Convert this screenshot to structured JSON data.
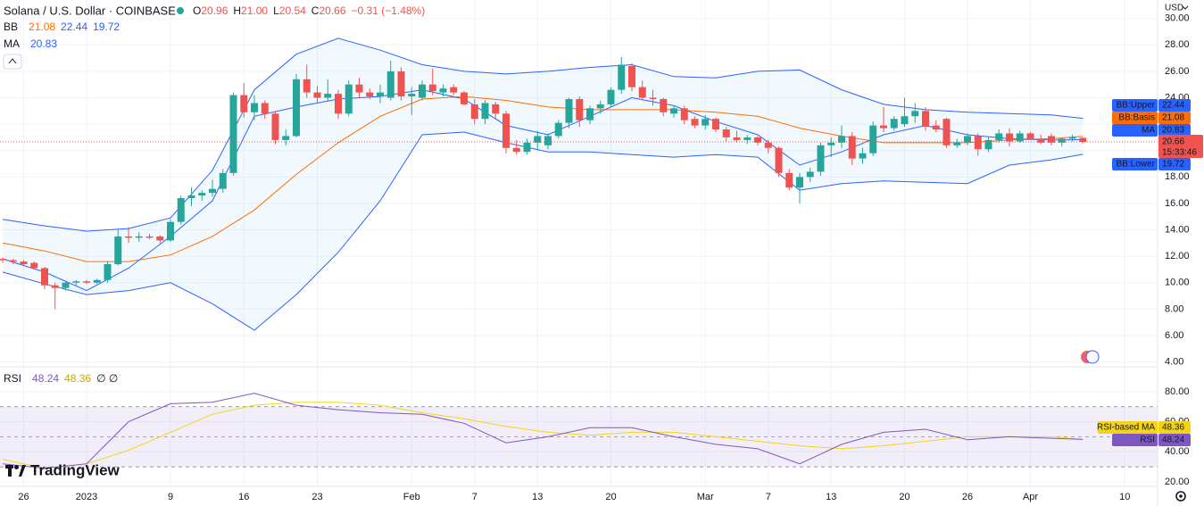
{
  "chart_data": {
    "type": "candlestick",
    "title": "Solana / U.S. Dollar · COINBASE",
    "ohlc_header": [
      {
        "key": "O",
        "value": "20.96"
      },
      {
        "key": "H",
        "value": "21.00"
      },
      {
        "key": "L",
        "value": "20.54"
      },
      {
        "key": "C",
        "value": "20.66"
      }
    ],
    "change": "−0.31 (−1.48%)",
    "currency": "USD",
    "bb_label": "BB",
    "ma_label": "MA",
    "countdown": "15:33:46",
    "watermark": "TradingView",
    "up_color": "#26a69a",
    "down_color": "#ef5350",
    "grid": true,
    "categories": [
      "Dec 24",
      "Dec 25",
      "Dec 26",
      "Dec 27",
      "Dec 28",
      "Dec 29",
      "Dec 30",
      "Dec 31",
      "Jan 1",
      "Jan 2",
      "Jan 3",
      "Jan 4",
      "Jan 5",
      "Jan 6",
      "Jan 7",
      "Jan 8",
      "Jan 9",
      "Jan 10",
      "Jan 11",
      "Jan 12",
      "Jan 13",
      "Jan 14",
      "Jan 15",
      "Jan 16",
      "Jan 17",
      "Jan 18",
      "Jan 19",
      "Jan 20",
      "Jan 21",
      "Jan 22",
      "Jan 23",
      "Jan 24",
      "Jan 25",
      "Jan 26",
      "Jan 27",
      "Jan 28",
      "Jan 29",
      "Jan 30",
      "Jan 31",
      "Feb 1",
      "Feb 2",
      "Feb 3",
      "Feb 4",
      "Feb 5",
      "Feb 6",
      "Feb 7",
      "Feb 8",
      "Feb 9",
      "Feb 10",
      "Feb 11",
      "Feb 12",
      "Feb 13",
      "Feb 14",
      "Feb 15",
      "Feb 16",
      "Feb 17",
      "Feb 18",
      "Feb 19",
      "Feb 20",
      "Feb 21",
      "Feb 22",
      "Feb 23",
      "Feb 24",
      "Feb 25",
      "Feb 26",
      "Feb 27",
      "Feb 28",
      "Mar 1",
      "Mar 2",
      "Mar 3",
      "Mar 4",
      "Mar 5",
      "Mar 6",
      "Mar 7",
      "Mar 8",
      "Mar 9",
      "Mar 10",
      "Mar 11",
      "Mar 12",
      "Mar 13",
      "Mar 14",
      "Mar 15",
      "Mar 16",
      "Mar 17",
      "Mar 18",
      "Mar 19",
      "Mar 20",
      "Mar 21",
      "Mar 22",
      "Mar 23",
      "Mar 24",
      "Mar 25",
      "Mar 26",
      "Mar 27",
      "Mar 28",
      "Mar 29",
      "Mar 30",
      "Mar 31",
      "Apr 1",
      "Apr 2",
      "Apr 3",
      "Apr 4",
      "Apr 5",
      "Apr 6",
      "Apr 7",
      "Apr 8",
      "Apr 9",
      "Apr 10",
      "Apr 11",
      "Apr 12"
    ],
    "ohlc": [
      [
        11.8,
        11.9,
        11.5,
        11.7
      ],
      [
        11.7,
        11.8,
        11.4,
        11.6
      ],
      [
        11.6,
        11.7,
        11.3,
        11.4
      ],
      [
        11.5,
        11.6,
        11.0,
        11.1
      ],
      [
        11.1,
        11.2,
        9.5,
        9.8
      ],
      [
        9.8,
        10.0,
        8.0,
        9.6
      ],
      [
        9.6,
        10.1,
        9.4,
        10.0
      ],
      [
        10.0,
        10.2,
        9.8,
        10.1
      ],
      [
        10.1,
        10.2,
        9.9,
        10.0
      ],
      [
        10.0,
        10.3,
        9.9,
        10.2
      ],
      [
        10.2,
        11.6,
        10.0,
        11.4
      ],
      [
        11.4,
        14.0,
        11.3,
        13.5
      ],
      [
        13.5,
        14.2,
        13.0,
        13.4
      ],
      [
        13.4,
        13.8,
        13.1,
        13.5
      ],
      [
        13.5,
        13.7,
        13.3,
        13.4
      ],
      [
        13.5,
        13.6,
        13.0,
        13.2
      ],
      [
        13.2,
        14.8,
        13.1,
        14.6
      ],
      [
        14.6,
        16.6,
        14.4,
        16.4
      ],
      [
        16.4,
        17.2,
        15.8,
        16.6
      ],
      [
        16.6,
        17.0,
        16.2,
        16.8
      ],
      [
        16.8,
        17.8,
        16.5,
        17.1
      ],
      [
        17.1,
        18.6,
        16.8,
        18.3
      ],
      [
        18.3,
        24.4,
        18.1,
        24.2
      ],
      [
        24.2,
        25.1,
        22.5,
        22.9
      ],
      [
        22.9,
        24.2,
        22.3,
        23.6
      ],
      [
        23.6,
        23.8,
        22.4,
        22.8
      ],
      [
        22.8,
        23.0,
        20.5,
        20.8
      ],
      [
        20.8,
        21.6,
        20.4,
        21.1
      ],
      [
        21.1,
        25.8,
        21.0,
        25.4
      ],
      [
        25.4,
        26.5,
        24.0,
        24.4
      ],
      [
        24.4,
        24.9,
        23.6,
        24.0
      ],
      [
        24.0,
        25.4,
        23.7,
        24.3
      ],
      [
        24.3,
        24.6,
        22.4,
        22.8
      ],
      [
        22.8,
        25.3,
        22.6,
        25.0
      ],
      [
        25.0,
        25.5,
        24.0,
        24.4
      ],
      [
        24.4,
        24.7,
        23.9,
        24.1
      ],
      [
        24.1,
        25.0,
        23.6,
        24.4
      ],
      [
        24.0,
        26.8,
        23.8,
        26.0
      ],
      [
        26.0,
        26.3,
        23.8,
        24.1
      ],
      [
        24.1,
        24.8,
        22.7,
        24.3
      ],
      [
        24.0,
        25.3,
        23.8,
        25.0
      ],
      [
        25.0,
        26.2,
        24.2,
        24.5
      ],
      [
        24.4,
        25.0,
        24.1,
        24.7
      ],
      [
        24.8,
        25.0,
        24.2,
        24.4
      ],
      [
        24.4,
        24.5,
        23.4,
        23.5
      ],
      [
        23.5,
        23.9,
        22.0,
        22.4
      ],
      [
        22.4,
        23.8,
        22.0,
        23.6
      ],
      [
        23.5,
        23.7,
        22.4,
        22.8
      ],
      [
        22.8,
        23.0,
        19.8,
        20.2
      ],
      [
        20.2,
        20.8,
        19.7,
        19.9
      ],
      [
        19.9,
        20.9,
        19.7,
        20.6
      ],
      [
        20.6,
        21.5,
        20.0,
        21.1
      ],
      [
        20.4,
        21.3,
        20.1,
        21.1
      ],
      [
        21.1,
        22.3,
        20.9,
        22.1
      ],
      [
        22.1,
        24.0,
        21.7,
        23.9
      ],
      [
        23.9,
        24.1,
        21.8,
        22.3
      ],
      [
        22.3,
        23.4,
        22.0,
        23.2
      ],
      [
        23.2,
        23.8,
        22.8,
        23.5
      ],
      [
        23.5,
        24.8,
        23.3,
        24.6
      ],
      [
        24.6,
        27.1,
        24.3,
        26.5
      ],
      [
        26.4,
        26.6,
        24.5,
        24.8
      ],
      [
        24.8,
        25.3,
        23.8,
        24.0
      ],
      [
        24.0,
        24.6,
        23.4,
        23.9
      ],
      [
        23.9,
        24.0,
        22.6,
        22.9
      ],
      [
        22.8,
        23.4,
        22.5,
        23.2
      ],
      [
        23.2,
        23.4,
        22.0,
        22.3
      ],
      [
        22.4,
        22.6,
        21.7,
        21.9
      ],
      [
        21.9,
        22.7,
        21.6,
        22.4
      ],
      [
        22.4,
        22.5,
        21.4,
        21.6
      ],
      [
        21.6,
        21.8,
        20.7,
        21.0
      ],
      [
        21.0,
        21.5,
        20.6,
        20.8
      ],
      [
        20.8,
        21.2,
        20.5,
        21.0
      ],
      [
        21.0,
        21.1,
        20.4,
        20.6
      ],
      [
        20.6,
        20.8,
        19.8,
        20.2
      ],
      [
        20.2,
        20.3,
        18.0,
        18.3
      ],
      [
        18.3,
        18.6,
        17.0,
        17.2
      ],
      [
        17.2,
        18.3,
        16.0,
        18.0
      ],
      [
        18.0,
        18.7,
        17.6,
        18.4
      ],
      [
        18.4,
        20.6,
        18.1,
        20.4
      ],
      [
        20.4,
        21.0,
        19.5,
        20.6
      ],
      [
        20.6,
        21.9,
        20.2,
        21.1
      ],
      [
        21.1,
        21.4,
        18.9,
        19.4
      ],
      [
        19.4,
        20.2,
        19.0,
        19.8
      ],
      [
        19.8,
        22.2,
        19.6,
        21.9
      ],
      [
        21.9,
        23.3,
        21.4,
        21.7
      ],
      [
        21.7,
        22.6,
        21.5,
        22.4
      ],
      [
        22.0,
        24.0,
        21.8,
        22.6
      ],
      [
        22.6,
        23.6,
        22.1,
        23.0
      ],
      [
        23.0,
        23.3,
        21.5,
        21.8
      ],
      [
        21.9,
        22.3,
        21.4,
        21.6
      ],
      [
        22.4,
        22.5,
        20.2,
        20.4
      ],
      [
        20.4,
        20.9,
        20.2,
        20.6
      ],
      [
        20.6,
        21.3,
        20.4,
        21.1
      ],
      [
        21.1,
        21.3,
        19.6,
        20.1
      ],
      [
        20.1,
        21.0,
        19.9,
        20.8
      ],
      [
        20.8,
        21.6,
        20.6,
        21.3
      ],
      [
        21.3,
        21.7,
        20.3,
        20.7
      ],
      [
        20.7,
        21.5,
        20.6,
        21.3
      ],
      [
        21.3,
        21.4,
        20.8,
        20.9
      ],
      [
        20.9,
        21.2,
        20.5,
        20.6
      ],
      [
        21.1,
        21.3,
        20.4,
        20.6
      ],
      [
        20.6,
        21.0,
        20.3,
        20.9
      ],
      [
        20.9,
        21.2,
        20.7,
        21.0
      ],
      [
        20.96,
        21.0,
        20.54,
        20.66
      ],
      null,
      null,
      null,
      null,
      null,
      null
    ],
    "xticks": [
      {
        "value": "Dec 26",
        "label": "26"
      },
      {
        "value": "Jan 1",
        "label": "2023"
      },
      {
        "value": "Jan 9",
        "label": "9"
      },
      {
        "value": "Jan 16",
        "label": "16"
      },
      {
        "value": "Jan 23",
        "label": "23"
      },
      {
        "value": "Feb 1",
        "label": "Feb"
      },
      {
        "value": "Feb 7",
        "label": "7"
      },
      {
        "value": "Feb 13",
        "label": "13"
      },
      {
        "value": "Feb 20",
        "label": "20"
      },
      {
        "value": "Mar 1",
        "label": "Mar"
      },
      {
        "value": "Mar 7",
        "label": "7"
      },
      {
        "value": "Mar 13",
        "label": "13"
      },
      {
        "value": "Mar 20",
        "label": "20"
      },
      {
        "value": "Mar 26",
        "label": "26"
      },
      {
        "value": "Apr 1",
        "label": "Apr"
      },
      {
        "value": "Apr 10",
        "label": "10"
      }
    ],
    "ylim": [
      3.7,
      31.4
    ],
    "yticks": [
      {
        "value": 4,
        "label": "4.00"
      },
      {
        "value": 6,
        "label": "6.00"
      },
      {
        "value": 8,
        "label": "8.00"
      },
      {
        "value": 10,
        "label": "10.00"
      },
      {
        "value": 12,
        "label": "12.00"
      },
      {
        "value": 14,
        "label": "14.00"
      },
      {
        "value": 16,
        "label": "16.00"
      },
      {
        "value": 18,
        "label": "18.00"
      },
      {
        "value": 20,
        "label": "20.00"
      },
      {
        "value": 22,
        "label": "22.00"
      },
      {
        "value": 24,
        "label": "24.00"
      },
      {
        "value": 26,
        "label": "26.00"
      },
      {
        "value": 28,
        "label": "28.00"
      },
      {
        "value": 30,
        "label": "30.00"
      }
    ],
    "overlays": {
      "x": [
        "Dec 24",
        "Dec 28",
        "Jan 1",
        "Jan 5",
        "Jan 9",
        "Jan 13",
        "Jan 17",
        "Jan 21",
        "Jan 25",
        "Jan 29",
        "Feb 2",
        "Feb 6",
        "Feb 10",
        "Feb 14",
        "Feb 18",
        "Feb 22",
        "Feb 26",
        "Mar 2",
        "Mar 6",
        "Mar 10",
        "Mar 14",
        "Mar 18",
        "Mar 22",
        "Mar 26",
        "Mar 30",
        "Apr 3",
        "Apr 6"
      ],
      "band_fill": "rgba(33,150,243,0.06)",
      "series": [
        {
          "name": "BB:Upper",
          "color": "#2962ff",
          "values": [
            14.8,
            14.3,
            13.9,
            14.1,
            14.9,
            18.5,
            24.6,
            27.3,
            28.5,
            27.6,
            26.5,
            26.0,
            25.8,
            26.0,
            26.3,
            26.5,
            25.6,
            25.5,
            26.0,
            26.1,
            24.6,
            23.5,
            23.1,
            22.9,
            22.8,
            22.7,
            22.44
          ]
        },
        {
          "name": "BB:Basis",
          "color": "#ff6d00",
          "values": [
            13.0,
            12.4,
            11.6,
            11.6,
            12.1,
            13.5,
            15.5,
            18.2,
            20.6,
            22.6,
            23.9,
            24.1,
            23.8,
            23.3,
            23.1,
            23.1,
            23.1,
            22.9,
            22.6,
            21.7,
            21.1,
            20.6,
            20.6,
            20.6,
            20.8,
            20.9,
            21.08
          ]
        },
        {
          "name": "BB:Lower",
          "color": "#2962ff",
          "values": [
            10.8,
            9.9,
            9.1,
            9.4,
            10.0,
            8.4,
            6.4,
            9.1,
            12.3,
            16.2,
            21.2,
            21.4,
            20.6,
            19.9,
            19.9,
            19.7,
            19.5,
            19.7,
            19.5,
            17.0,
            17.5,
            17.7,
            17.6,
            17.5,
            18.9,
            19.3,
            19.72
          ]
        },
        {
          "name": "MA",
          "color": "#2962ff",
          "values": [
            11.8,
            10.8,
            9.4,
            11.1,
            13.5,
            16.2,
            22.6,
            23.3,
            23.9,
            24.1,
            24.6,
            23.9,
            21.9,
            21.2,
            22.6,
            24.0,
            23.4,
            22.2,
            21.2,
            18.9,
            19.9,
            21.2,
            21.9,
            21.2,
            20.9,
            20.8,
            20.83
          ]
        }
      ]
    },
    "rsi": {
      "title": "RSI",
      "extra": "∅ ∅",
      "ylim": [
        17,
        96.6
      ],
      "yticks": [
        {
          "value": 20,
          "label": "20.00"
        },
        {
          "value": 40,
          "label": "40.00"
        },
        {
          "value": 60,
          "label": "60.00"
        },
        {
          "value": 80,
          "label": "80.00"
        }
      ],
      "levels": [
        70,
        50,
        30
      ],
      "band_color": "rgba(126,87,194,0.1)",
      "x": [
        "Dec 24",
        "Dec 28",
        "Jan 1",
        "Jan 5",
        "Jan 9",
        "Jan 13",
        "Jan 17",
        "Jan 21",
        "Jan 25",
        "Jan 29",
        "Feb 2",
        "Feb 6",
        "Feb 10",
        "Feb 14",
        "Feb 18",
        "Feb 22",
        "Feb 26",
        "Mar 2",
        "Mar 6",
        "Mar 10",
        "Mar 14",
        "Mar 18",
        "Mar 22",
        "Mar 26",
        "Mar 30",
        "Apr 3",
        "Apr 6"
      ],
      "series": [
        {
          "name": "RSI",
          "color": "#7e57c2",
          "values": [
            32,
            29,
            32,
            60,
            72,
            73,
            79,
            71,
            68,
            66,
            65,
            59,
            46,
            50,
            56,
            56,
            50,
            45,
            42,
            32,
            45,
            53,
            55,
            48,
            50,
            49,
            48.24
          ]
        },
        {
          "name": "RSI-based MA",
          "color": "#f5d418",
          "values": [
            35,
            29,
            32,
            41,
            53,
            65,
            71,
            73,
            73,
            71,
            66,
            62,
            57,
            53,
            51,
            53,
            53,
            50,
            47,
            44,
            42,
            44,
            47,
            50,
            50,
            50,
            48.36
          ]
        }
      ]
    }
  }
}
